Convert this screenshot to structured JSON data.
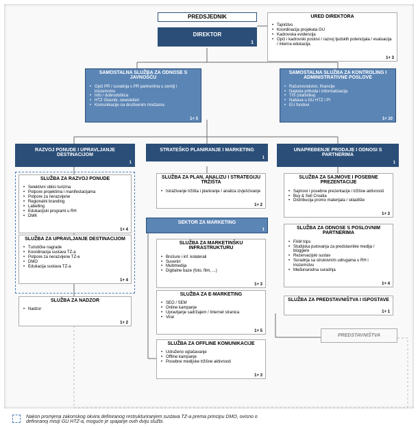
{
  "colors": {
    "dark": "#2a4e78",
    "light": "#5b85b5",
    "dashed": "#4a7ab5",
    "connector": "#666",
    "connector_dash": "#bbb"
  },
  "predsjednik": {
    "title": "PREDSJEDNIK"
  },
  "direktor": {
    "title": "DIREKTOR",
    "count": "1"
  },
  "ured": {
    "title": "URED DIREKTORA",
    "count": "1+ 3",
    "items": [
      "Tajništvo",
      "Koordinacija projekata GU",
      "Kadrovska evidencija",
      "Opći i kadrovski poslovi / razvoj ljudskih potencijala / evaluacija / interna edukacija"
    ]
  },
  "pr": {
    "title": "SAMOSTALNA SLUŽBA ZA ODNOSE S JAVNOŠĆU",
    "count": "1+ 5",
    "items": [
      "Opći PR / suradnja s PR partnerima u zemlji i inozemstvu",
      "Info / dobrodošlica",
      "HTZ Glasnik, newsletteri",
      "Komunikacije na društvenim mrežama"
    ]
  },
  "kont": {
    "title": "SAMOSTALNA SLUŽBA ZA KONTROLING I ADMINISTRATIVNE POSLOVE",
    "count": "1+ 10",
    "items": [
      "Računovodstvo, financije",
      "Naplata prihoda i informatizacija",
      "TIS (statistika)",
      "Nabava u GU HTZ i PI",
      "EU fondovi"
    ]
  },
  "col1": {
    "head": {
      "title": "RAZVOJ PONUDE I UPRAVLJANJE DESTINACIJOM",
      "count": "1"
    },
    "b1": {
      "title": "SLUŽBA ZA RAZVOJ PONUDE",
      "count": "1+ 4",
      "items": [
        "Selektivni oblici turizma",
        "Potpore projektima i manifestacijama",
        "Potpore za nerazvijene",
        "Regionalni branding",
        "Labelling",
        "Edukacijski programi u RH",
        "DMK"
      ]
    },
    "b2": {
      "title": "SLUŽBA ZA UPRAVLJANJE DESTINACIJOM",
      "count": "1+ 4",
      "items": [
        "Turističke nagrade",
        "Koordinacija sustava TZ-a",
        "Potpore za nerazvijene TZ-e",
        "DMO",
        "Edukacija sustava TZ-a"
      ]
    },
    "b3": {
      "title": "SLUŽBA ZA NADZOR",
      "count": "1+ 2",
      "items": [
        "Nadzor"
      ]
    }
  },
  "col2": {
    "head": {
      "title": "STRATEŠKO PLANIRANJE I MARKETING",
      "count": "1"
    },
    "b1": {
      "title": "SLUŽBA ZA PLAN, ANALIZU I STRATEGIJU TRŽIŠTA",
      "count": "1+ 2",
      "items": [
        "Istraživanje tržišta i planiranje / analiza izvješćivanje"
      ]
    },
    "sektor": {
      "title": "SEKTOR ZA MARKETING",
      "count": "1"
    },
    "b2": {
      "title": "SLUŽBA ZA MARKETINŠKU INFRASTRUKTURU",
      "count": "1+ 3",
      "items": [
        "Brošure i inf. kolaterali",
        "Suveniri",
        "Multimedija",
        "Digitalne baze (foto, film, ...)"
      ]
    },
    "b3": {
      "title": "SLUŽBA ZA E-MARKETING",
      "count": "1+ 5",
      "items": [
        "SEO / SEM",
        "Online kampanje",
        "Upravljanje sadržajem / Internet stranica",
        "Viral"
      ]
    },
    "b4": {
      "title": "SLUŽBA ZA OFFLINE KOMUNIKACIJE",
      "count": "1+ 3",
      "items": [
        "Udruženo oglašavanje",
        "Offline kampanje",
        "Posebne medijske tržišne aktivnosti"
      ]
    }
  },
  "col3": {
    "head": {
      "title": "UNAPREĐENJE PRODAJE I ODNOSI S PARTNERIMA",
      "count": "1"
    },
    "b1": {
      "title": "SLUŽBA ZA SAJMOVE I POSEBNE PREZENTACIJE",
      "count": "1+ 3",
      "items": [
        "Sajmovi i posebne prezentacije i tržišne aktivnosti",
        "Buy & Sell Croatia",
        "Distribucija promo materijala / skladište"
      ]
    },
    "b2": {
      "title": "SLUŽBA ZA ODNOSE S POSLOVNIM PARTNERIMA",
      "count": "1+ 4",
      "items": [
        "FAM trips",
        "Studijska putovanja za predstavnike medija / bloggere",
        "Rezervacijski sustav",
        "Suradnja sa strukovnim udrugama u RH i inozemstvu",
        "Međunarodna suradnja"
      ]
    },
    "b3": {
      "title": "SLUŽBA ZA PREDSTAVNIŠTVA I ISPOSTAVE",
      "count": "1+ 1",
      "items": []
    },
    "pred": {
      "title": "PREDSTAVNIŠTVA"
    }
  },
  "footnote": "Nakon promjena zakonskog okvira definiranog restrukturiranjem sustava TZ-a prema principu DMO, ovisno o definiranoj misiji GU HTZ-a, moguće je spajanje ovih dviju službi."
}
